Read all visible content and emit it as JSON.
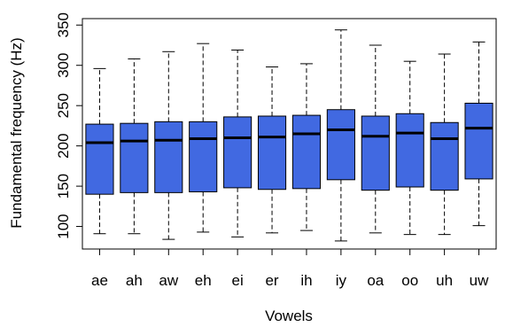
{
  "chart_data": {
    "type": "boxplot",
    "xlabel": "Vowels",
    "ylabel": "Fundamental frequency (Hz)",
    "ylim": [
      72,
      358
    ],
    "yticks": [
      100,
      150,
      200,
      250,
      300,
      350
    ],
    "grid": false,
    "box_color": "#4169E1",
    "categories": [
      "ae",
      "ah",
      "aw",
      "eh",
      "ei",
      "er",
      "ih",
      "iy",
      "oa",
      "oo",
      "uh",
      "uw"
    ],
    "boxes": [
      {
        "label": "ae",
        "whisker_low": 91,
        "q1": 140,
        "median": 204,
        "q3": 227,
        "whisker_high": 296
      },
      {
        "label": "ah",
        "whisker_low": 91,
        "q1": 142,
        "median": 206,
        "q3": 228,
        "whisker_high": 308
      },
      {
        "label": "aw",
        "whisker_low": 84,
        "q1": 142,
        "median": 207,
        "q3": 230,
        "whisker_high": 317
      },
      {
        "label": "eh",
        "whisker_low": 93,
        "q1": 143,
        "median": 209,
        "q3": 230,
        "whisker_high": 327
      },
      {
        "label": "ei",
        "whisker_low": 87,
        "q1": 148,
        "median": 210,
        "q3": 236,
        "whisker_high": 319
      },
      {
        "label": "er",
        "whisker_low": 92,
        "q1": 146,
        "median": 211,
        "q3": 237,
        "whisker_high": 298
      },
      {
        "label": "ih",
        "whisker_low": 95,
        "q1": 147,
        "median": 215,
        "q3": 238,
        "whisker_high": 302
      },
      {
        "label": "iy",
        "whisker_low": 82,
        "q1": 158,
        "median": 220,
        "q3": 245,
        "whisker_high": 344
      },
      {
        "label": "oa",
        "whisker_low": 92,
        "q1": 145,
        "median": 212,
        "q3": 237,
        "whisker_high": 325
      },
      {
        "label": "oo",
        "whisker_low": 90,
        "q1": 149,
        "median": 216,
        "q3": 240,
        "whisker_high": 305
      },
      {
        "label": "uh",
        "whisker_low": 90,
        "q1": 145,
        "median": 209,
        "q3": 229,
        "whisker_high": 314
      },
      {
        "label": "uw",
        "whisker_low": 101,
        "q1": 159,
        "median": 222,
        "q3": 253,
        "whisker_high": 329
      }
    ]
  }
}
